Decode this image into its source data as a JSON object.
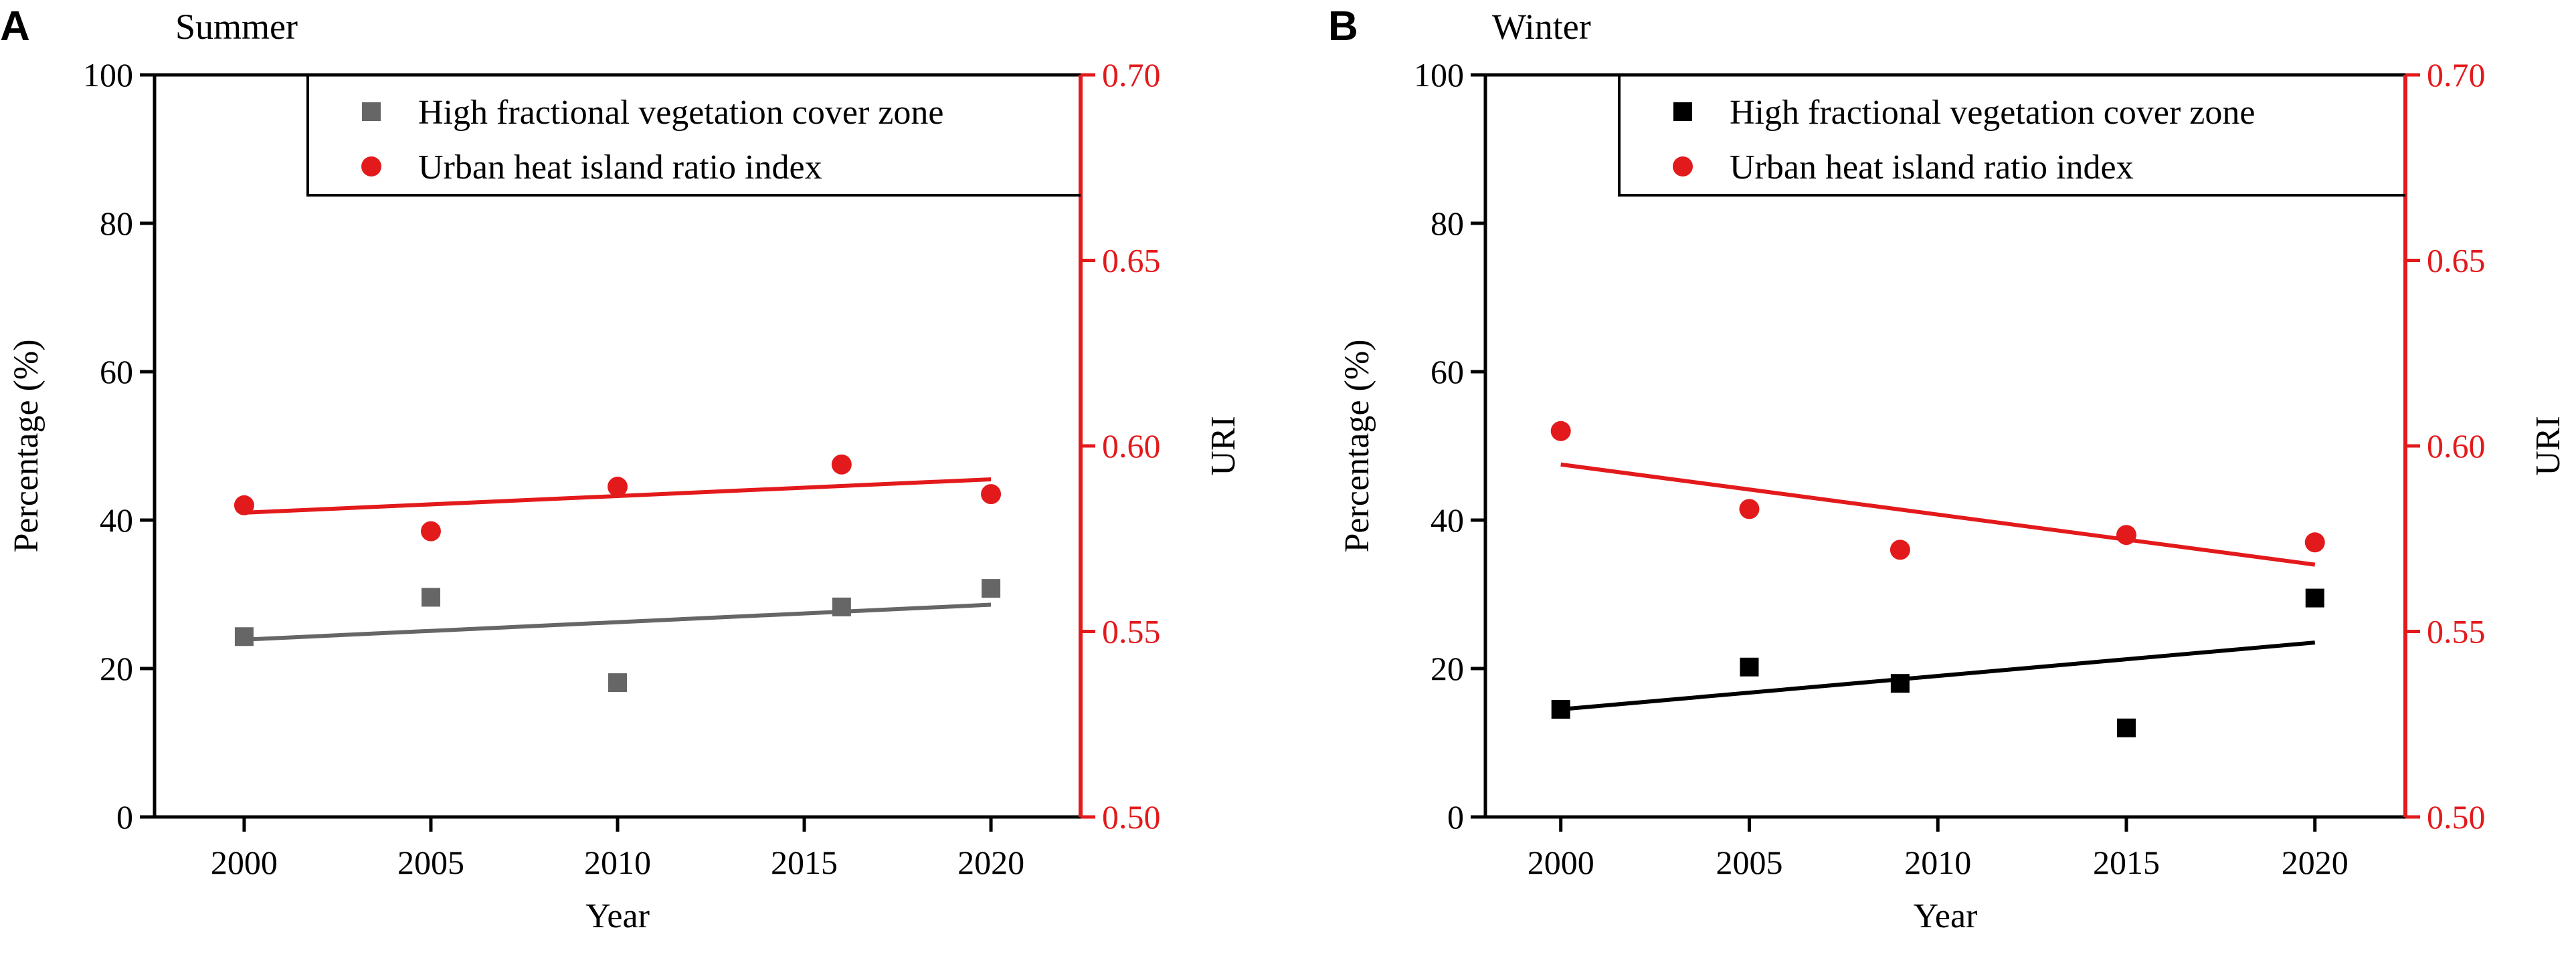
{
  "figure": {
    "colors": {
      "black": "#000000",
      "red": "#e31a1c",
      "gray": "#666666",
      "white": "#ffffff"
    }
  },
  "chart_data": [
    {
      "panel_label": "A",
      "title": "Summer",
      "type": "scatter",
      "xlabel": "Year",
      "ylabel_left": "Percentage (%)",
      "ylabel_right": "URI",
      "xlim": [
        1997.6,
        2022.4
      ],
      "ylim_left": [
        0,
        100
      ],
      "ylim_right": [
        0.5,
        0.7
      ],
      "x_ticks": [
        "2000",
        "2005",
        "2010",
        "2015",
        "2020"
      ],
      "y_left_ticks": [
        "0",
        "20",
        "40",
        "60",
        "80",
        "100"
      ],
      "y_right_ticks": [
        "0.50",
        "0.55",
        "0.60",
        "0.65",
        "0.70"
      ],
      "legend_position": "top-right",
      "series": [
        {
          "name": "High fractional vegetation cover zone",
          "axis": "left",
          "marker": "square",
          "color": "#666666",
          "x": [
            2000,
            2005,
            2010,
            2016,
            2020
          ],
          "values": [
            24.3,
            29.6,
            18.1,
            28.3,
            30.8
          ],
          "trend": {
            "x": [
              2000,
              2020
            ],
            "y": [
              23.9,
              28.6
            ]
          }
        },
        {
          "name": "Urban heat island ratio index",
          "axis": "right",
          "marker": "circle",
          "color": "#e31a1c",
          "x": [
            2000,
            2005,
            2010,
            2016,
            2020
          ],
          "values": [
            0.584,
            0.577,
            0.589,
            0.595,
            0.587
          ],
          "trend": {
            "x": [
              2000,
              2020
            ],
            "y": [
              0.582,
              0.591
            ]
          }
        }
      ]
    },
    {
      "panel_label": "B",
      "title": "Winter",
      "type": "scatter",
      "xlabel": "Year",
      "ylabel_left": "Percentage (%)",
      "ylabel_right": "URI",
      "xlim": [
        1998.0,
        2022.4
      ],
      "ylim_left": [
        0,
        100
      ],
      "ylim_right": [
        0.5,
        0.7
      ],
      "x_ticks": [
        "2000",
        "2005",
        "2010",
        "2015",
        "2020"
      ],
      "y_left_ticks": [
        "0",
        "20",
        "40",
        "60",
        "80",
        "100"
      ],
      "y_right_ticks": [
        "0.50",
        "0.55",
        "0.60",
        "0.65",
        "0.70"
      ],
      "legend_position": "top-right",
      "series": [
        {
          "name": "High fractional vegetation cover zone",
          "axis": "left",
          "marker": "square",
          "color": "#000000",
          "x": [
            2000,
            2005,
            2009,
            2015,
            2020
          ],
          "values": [
            14.5,
            20.2,
            18.0,
            12.0,
            29.5
          ],
          "trend": {
            "x": [
              2000,
              2020
            ],
            "y": [
              14.5,
              23.5
            ]
          }
        },
        {
          "name": "Urban heat island ratio index",
          "axis": "right",
          "marker": "circle",
          "color": "#e31a1c",
          "x": [
            2000,
            2005,
            2009,
            2015,
            2020
          ],
          "values": [
            0.604,
            0.583,
            0.572,
            0.576,
            0.574
          ],
          "trend": {
            "x": [
              2000,
              2020
            ],
            "y": [
              0.595,
              0.568
            ]
          }
        }
      ]
    }
  ]
}
